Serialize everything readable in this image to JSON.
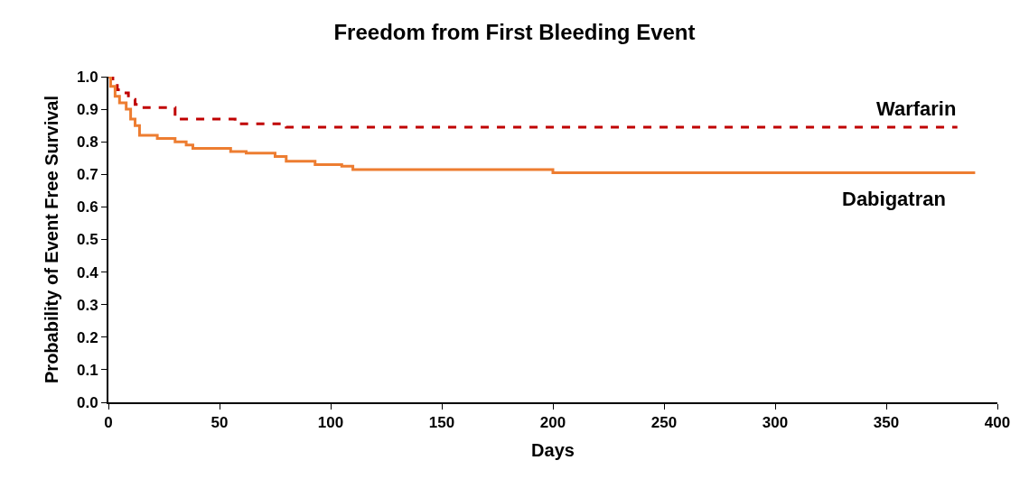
{
  "chart_data": {
    "type": "step",
    "title": "Freedom from First Bleeding Event",
    "xlabel": "Days",
    "ylabel": "Probability of Event Free Survival",
    "xlim": [
      0,
      400
    ],
    "xticks": [
      0,
      50,
      100,
      150,
      200,
      250,
      300,
      350,
      400
    ],
    "ylim": [
      0,
      1.0
    ],
    "yticks": [
      {
        "value": 0,
        "label": "0.0"
      },
      {
        "value": 0.1,
        "label": "0.1"
      },
      {
        "value": 0.2,
        "label": "0.2"
      },
      {
        "value": 0.3,
        "label": "0.3"
      },
      {
        "value": 0.4,
        "label": "0.4"
      },
      {
        "value": 0.5,
        "label": "0.5"
      },
      {
        "value": 0.6,
        "label": "0.6"
      },
      {
        "value": 0.7,
        "label": "0.7"
      },
      {
        "value": 0.8,
        "label": "0.8"
      },
      {
        "value": 0.9,
        "label": "0.9"
      },
      {
        "value": 1.0,
        "label": "1.0"
      }
    ],
    "legend": false,
    "series": [
      {
        "name": "Warfarin",
        "color": "#c00000",
        "line_style": "dashed",
        "x": [
          0,
          2,
          4,
          6,
          9,
          12,
          16,
          30,
          32,
          57,
          80,
          382
        ],
        "values": [
          1.0,
          0.98,
          0.96,
          0.95,
          0.93,
          0.915,
          0.905,
          0.88,
          0.87,
          0.855,
          0.845,
          0.845
        ]
      },
      {
        "name": "Dabigatran",
        "color": "#ed7d31",
        "line_style": "solid",
        "x": [
          0,
          1,
          3,
          5,
          8,
          10,
          12,
          14,
          22,
          30,
          35,
          38,
          55,
          62,
          75,
          80,
          93,
          105,
          110,
          200,
          390
        ],
        "values": [
          1.0,
          0.97,
          0.94,
          0.92,
          0.9,
          0.87,
          0.85,
          0.82,
          0.81,
          0.8,
          0.79,
          0.78,
          0.77,
          0.765,
          0.755,
          0.74,
          0.73,
          0.725,
          0.715,
          0.705,
          0.705
        ]
      }
    ]
  }
}
